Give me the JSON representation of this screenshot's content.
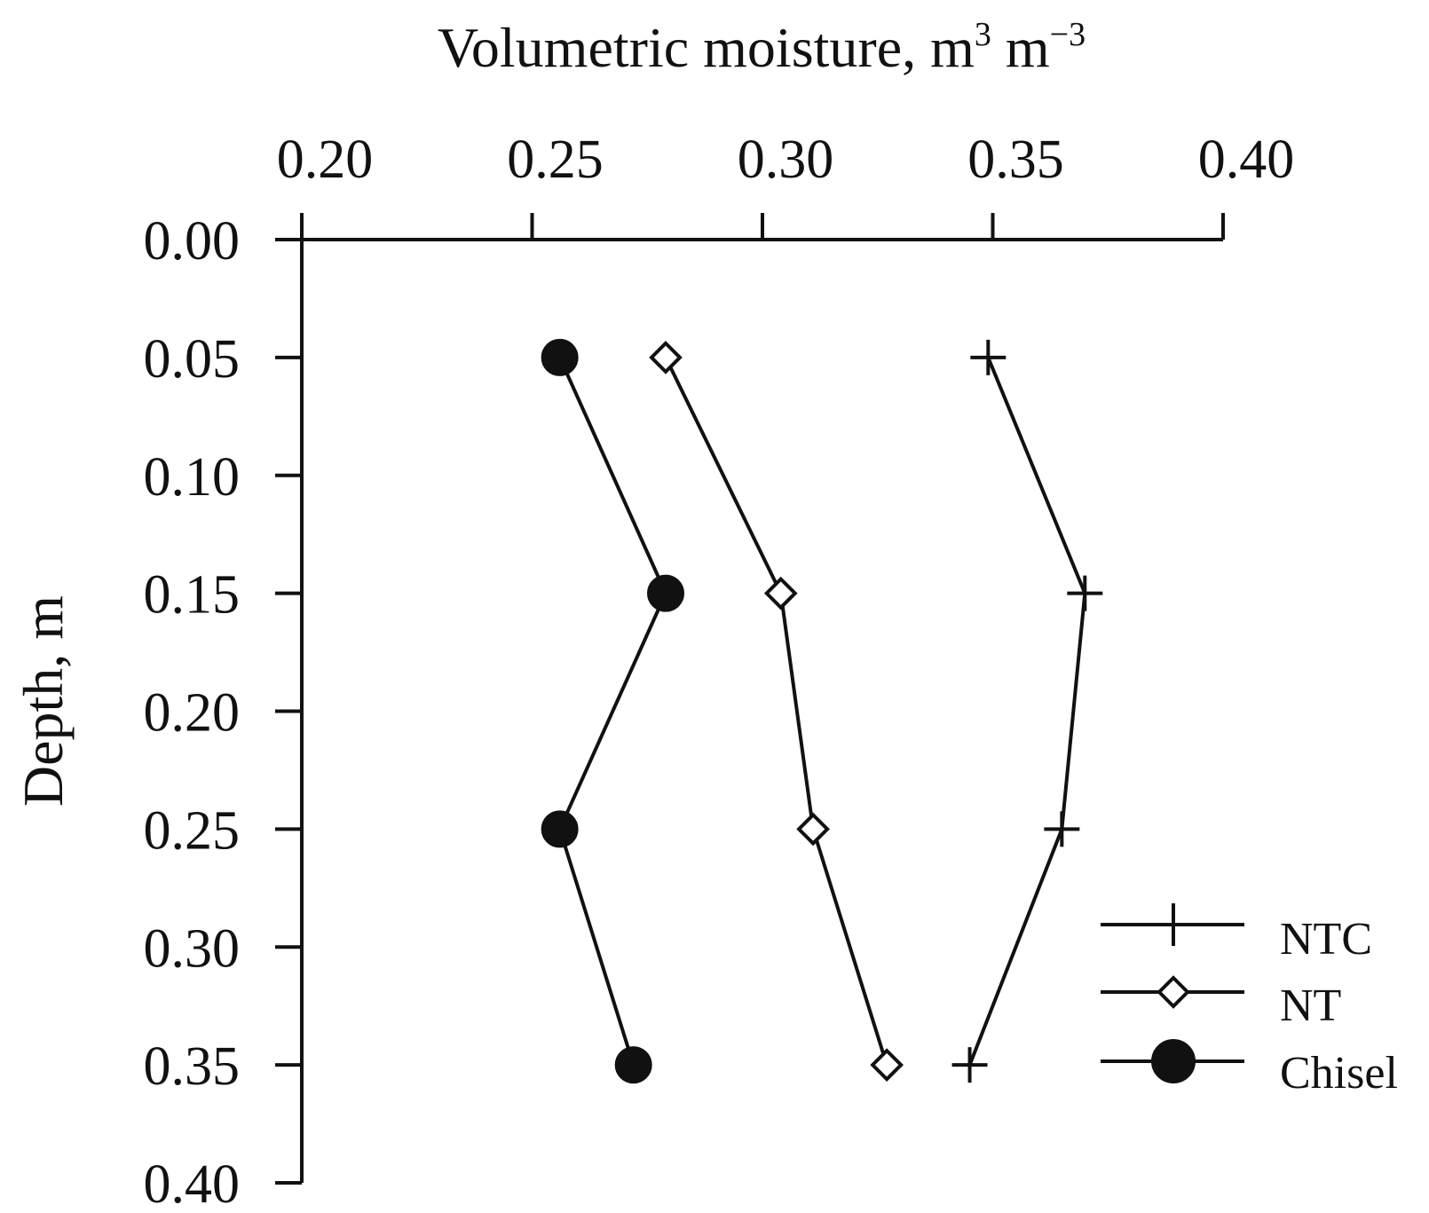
{
  "chart_data": {
    "type": "line",
    "orientation": "depth-profile",
    "x_axis_position": "top",
    "xlabel": {
      "prefix": "Volumetric moisture, m",
      "sup1": "3",
      "middle": " m",
      "sup2": "−3"
    },
    "ylabel": "Depth, m",
    "xlim": [
      0.2,
      0.4
    ],
    "ylim": [
      0.0,
      0.4
    ],
    "y_inverted": true,
    "x_ticks": [
      "0.20",
      "0.25",
      "0.30",
      "0.35",
      "0.40"
    ],
    "y_ticks": [
      "0.00",
      "0.05",
      "0.10",
      "0.15",
      "0.20",
      "0.25",
      "0.30",
      "0.35",
      "0.40"
    ],
    "grid": false,
    "legend_position": "bottom-right",
    "series": [
      {
        "name": "NTC",
        "marker": "plus",
        "points": [
          {
            "depth": 0.05,
            "moisture": 0.349
          },
          {
            "depth": 0.15,
            "moisture": 0.37
          },
          {
            "depth": 0.25,
            "moisture": 0.365
          },
          {
            "depth": 0.35,
            "moisture": 0.345
          }
        ]
      },
      {
        "name": "NT",
        "marker": "open-diamond",
        "points": [
          {
            "depth": 0.05,
            "moisture": 0.279
          },
          {
            "depth": 0.15,
            "moisture": 0.304
          },
          {
            "depth": 0.25,
            "moisture": 0.311
          },
          {
            "depth": 0.35,
            "moisture": 0.327
          }
        ]
      },
      {
        "name": "Chisel",
        "marker": "filled-circle",
        "points": [
          {
            "depth": 0.05,
            "moisture": 0.256
          },
          {
            "depth": 0.15,
            "moisture": 0.279
          },
          {
            "depth": 0.25,
            "moisture": 0.256
          },
          {
            "depth": 0.35,
            "moisture": 0.272
          }
        ]
      }
    ],
    "colors": {
      "ink": "#111111",
      "background": "#ffffff"
    }
  }
}
